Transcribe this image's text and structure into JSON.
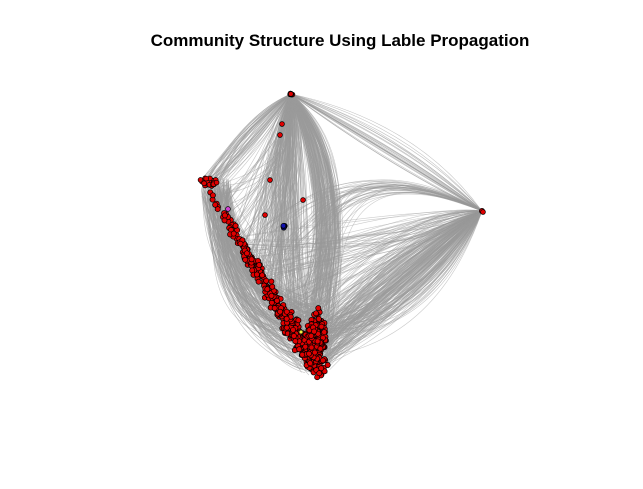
{
  "title": "Community Structure Using Lable Propagation",
  "colors": {
    "background": "#ffffff",
    "edge": "#9a9a9a",
    "node_main": "#e00000",
    "node_outline": "#000000",
    "node_blue": "#1010b0",
    "node_magenta": "#d040d0",
    "node_yellow": "#f0f040"
  },
  "graph": {
    "layout": "force-directed",
    "communities": [
      {
        "name": "community-red",
        "color": "#e00000",
        "share": "majority"
      },
      {
        "name": "community-blue",
        "color": "#1010b0",
        "share": "small"
      },
      {
        "name": "community-magenta",
        "color": "#d040d0",
        "share": "single"
      },
      {
        "name": "community-yellow",
        "color": "#f0f040",
        "share": "single"
      }
    ]
  }
}
